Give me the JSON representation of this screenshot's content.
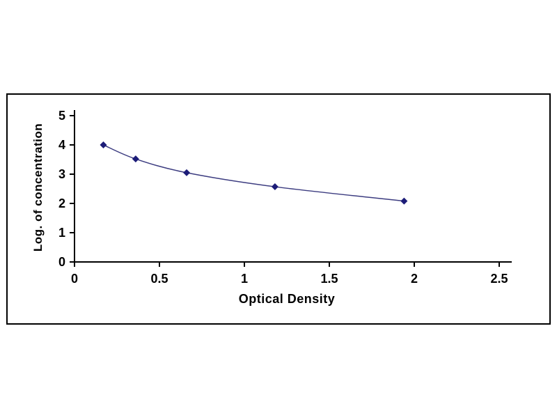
{
  "chart_data": {
    "type": "scatter",
    "title": "",
    "xlabel": "Optical Density",
    "ylabel": "Log. of concentration",
    "x": [
      0.17,
      0.36,
      0.66,
      1.18,
      1.94
    ],
    "y": [
      4.0,
      3.52,
      3.05,
      2.57,
      2.08
    ],
    "xlim": [
      0,
      2.5
    ],
    "ylim": [
      0,
      5
    ],
    "x_tick_values": [
      0,
      0.5,
      1,
      1.5,
      2,
      2.5
    ],
    "x_tick_labels": [
      "0",
      "0.5",
      "1",
      "1.5",
      "2",
      "2.5"
    ],
    "y_tick_values": [
      0,
      1,
      2,
      3,
      4,
      5
    ],
    "y_tick_labels": [
      "0",
      "1",
      "2",
      "3",
      "4",
      "5"
    ],
    "grid": false,
    "legend": false,
    "marker": "diamond",
    "marker_color": "#1c1c78",
    "line_color": "#3c3c80",
    "axis_color": "#000000"
  }
}
